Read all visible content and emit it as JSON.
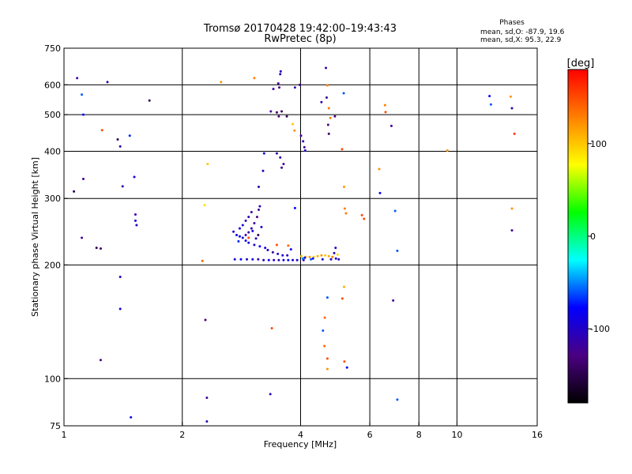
{
  "chart_data": {
    "type": "scatter",
    "title": "Tromsø 20170428 19:42:00–19:43:43",
    "subtitle": "RwPretec (8p)",
    "xlabel": "Frequency [MHz]",
    "ylabel": "Stationary phase Virtual Height [km]",
    "x_scale": "log",
    "y_scale": "log",
    "xlim": [
      1,
      16
    ],
    "ylim": [
      75,
      750
    ],
    "x_ticks": [
      1,
      2,
      4,
      6,
      8,
      10,
      16
    ],
    "y_ticks": [
      75,
      100,
      200,
      300,
      400,
      500,
      600,
      750
    ],
    "x_gridlines": [
      2,
      4,
      6,
      8,
      10
    ],
    "y_gridlines": [
      100,
      200,
      300,
      400,
      500,
      600
    ],
    "stats": {
      "heading": "Phases",
      "line_o": "mean, sd,O: -87.9, 19.6",
      "line_x": "mean, sd,X:  95.3, 22.9"
    },
    "colorbar": {
      "label": "[deg]",
      "range": [
        -180,
        180
      ],
      "ticks": [
        100,
        0,
        -100
      ],
      "colors": [
        "#000000",
        "#4b0082",
        "#0000ff",
        "#00ffff",
        "#00ff00",
        "#ffff00",
        "#ff8000",
        "#ff0000"
      ]
    },
    "points": [
      [
        1.08,
        625,
        -120
      ],
      [
        1.29,
        610,
        -110
      ],
      [
        1.11,
        565,
        -60
      ],
      [
        1.12,
        500,
        -80
      ],
      [
        1.65,
        545,
        -150
      ],
      [
        1.37,
        430,
        -150
      ],
      [
        1.39,
        412,
        -110
      ],
      [
        1.25,
        455,
        150
      ],
      [
        1.47,
        440,
        -70
      ],
      [
        1.12,
        338,
        -120
      ],
      [
        1.06,
        313,
        -150
      ],
      [
        1.41,
        323,
        -110
      ],
      [
        1.51,
        342,
        -90
      ],
      [
        1.52,
        272,
        -110
      ],
      [
        1.52,
        262,
        -90
      ],
      [
        1.53,
        255,
        -100
      ],
      [
        1.11,
        236,
        -120
      ],
      [
        1.21,
        222,
        -150
      ],
      [
        1.24,
        221,
        -140
      ],
      [
        1.39,
        186,
        -100
      ],
      [
        1.39,
        153,
        -90
      ],
      [
        1.24,
        112,
        -130
      ],
      [
        1.48,
        79,
        -90
      ],
      [
        2.51,
        610,
        120
      ],
      [
        3.05,
        625,
        130
      ],
      [
        2.32,
        370,
        100
      ],
      [
        2.28,
        288,
        90
      ],
      [
        2.29,
        143,
        -130
      ],
      [
        2.31,
        89,
        -120
      ],
      [
        2.31,
        77,
        -110
      ],
      [
        3.35,
        91,
        -110
      ],
      [
        3.38,
        136,
        150
      ],
      [
        2.25,
        205,
        140
      ],
      [
        3.51,
        605,
        -120
      ],
      [
        3.53,
        590,
        -130
      ],
      [
        3.55,
        640,
        -110
      ],
      [
        3.56,
        651,
        -100
      ],
      [
        3.41,
        585,
        -110
      ],
      [
        3.36,
        510,
        -120
      ],
      [
        3.48,
        507,
        -140
      ],
      [
        3.52,
        495,
        -130
      ],
      [
        3.58,
        510,
        -140
      ],
      [
        3.69,
        495,
        -150
      ],
      [
        3.82,
        472,
        100
      ],
      [
        3.86,
        454,
        120
      ],
      [
        3.87,
        590,
        -110
      ],
      [
        3.98,
        600,
        -120
      ],
      [
        4.01,
        440,
        -120
      ],
      [
        4.06,
        425,
        -110
      ],
      [
        4.09,
        410,
        -120
      ],
      [
        4.11,
        402,
        -100
      ],
      [
        3.48,
        395,
        -110
      ],
      [
        3.55,
        385,
        -110
      ],
      [
        3.62,
        370,
        -120
      ],
      [
        3.58,
        362,
        -120
      ],
      [
        3.23,
        395,
        -90
      ],
      [
        3.21,
        355,
        -100
      ],
      [
        3.13,
        322,
        -110
      ],
      [
        3.87,
        283,
        -80
      ],
      [
        3.72,
        225,
        140
      ],
      [
        3.48,
        226,
        150
      ],
      [
        4.07,
        206,
        -100
      ],
      [
        3.78,
        220,
        -90
      ],
      [
        4.64,
        665,
        -120
      ],
      [
        4.68,
        598,
        130
      ],
      [
        4.66,
        555,
        -120
      ],
      [
        4.52,
        540,
        -110
      ],
      [
        4.89,
        495,
        -130
      ],
      [
        4.72,
        520,
        130
      ],
      [
        4.76,
        490,
        130
      ],
      [
        4.7,
        470,
        -130
      ],
      [
        4.72,
        445,
        -140
      ],
      [
        5.15,
        570,
        -60
      ],
      [
        5.1,
        405,
        150
      ],
      [
        5.16,
        322,
        120
      ],
      [
        5.18,
        282,
        130
      ],
      [
        5.22,
        274,
        130
      ],
      [
        5.73,
        271,
        150
      ],
      [
        5.8,
        265,
        150
      ],
      [
        4.91,
        222,
        -100
      ],
      [
        4.87,
        215,
        -110
      ],
      [
        5.16,
        175,
        110
      ],
      [
        5.11,
        163,
        150
      ],
      [
        4.68,
        164,
        -60
      ],
      [
        4.61,
        145,
        140
      ],
      [
        4.56,
        134,
        -60
      ],
      [
        4.6,
        122,
        140
      ],
      [
        4.68,
        113,
        150
      ],
      [
        4.68,
        106,
        120
      ],
      [
        5.17,
        111,
        150
      ],
      [
        5.25,
        107,
        -80
      ],
      [
        6.34,
        359,
        120
      ],
      [
        6.37,
        310,
        -80
      ],
      [
        6.56,
        530,
        130
      ],
      [
        6.58,
        508,
        150
      ],
      [
        6.81,
        467,
        -120
      ],
      [
        6.96,
        278,
        -60
      ],
      [
        6.88,
        161,
        -120
      ],
      [
        7.05,
        88,
        -60
      ],
      [
        7.05,
        218,
        -60
      ],
      [
        9.45,
        402,
        120
      ],
      [
        12.1,
        560,
        -80
      ],
      [
        12.2,
        532,
        -60
      ],
      [
        13.7,
        558,
        120
      ],
      [
        13.8,
        520,
        -110
      ],
      [
        14.0,
        445,
        160
      ],
      [
        13.8,
        282,
        120
      ],
      [
        13.8,
        247,
        -120
      ],
      [
        2.7,
        245,
        -100
      ],
      [
        2.75,
        240,
        -90
      ],
      [
        2.8,
        238,
        -80
      ],
      [
        2.85,
        236,
        -100
      ],
      [
        2.9,
        240,
        -110
      ],
      [
        2.95,
        244,
        -120
      ],
      [
        3.0,
        250,
        -110
      ],
      [
        3.05,
        258,
        -120
      ],
      [
        3.1,
        268,
        -130
      ],
      [
        3.13,
        280,
        -120
      ],
      [
        3.15,
        286,
        -110
      ],
      [
        2.8,
        250,
        -90
      ],
      [
        2.85,
        255,
        -100
      ],
      [
        2.9,
        262,
        -110
      ],
      [
        2.95,
        268,
        -110
      ],
      [
        3.0,
        276,
        -120
      ],
      [
        2.9,
        232,
        -80
      ],
      [
        2.95,
        229,
        -90
      ],
      [
        3.05,
        226,
        -100
      ],
      [
        3.15,
        224,
        -80
      ],
      [
        3.25,
        222,
        -90
      ],
      [
        3.3,
        219,
        -100
      ],
      [
        3.4,
        216,
        -110
      ],
      [
        3.5,
        214,
        -100
      ],
      [
        3.6,
        212,
        -90
      ],
      [
        3.7,
        212,
        -110
      ],
      [
        3.02,
        246,
        -90
      ],
      [
        2.78,
        231,
        -70
      ],
      [
        3.08,
        235,
        -100
      ],
      [
        3.18,
        252,
        -90
      ],
      [
        3.12,
        240,
        -150
      ],
      [
        2.95,
        236,
        150
      ],
      [
        2.72,
        207,
        -90
      ],
      [
        2.82,
        207,
        -80
      ],
      [
        2.92,
        207,
        -100
      ],
      [
        3.02,
        207,
        -90
      ],
      [
        3.12,
        207,
        -110
      ],
      [
        3.22,
        206,
        -100
      ],
      [
        3.32,
        206,
        -90
      ],
      [
        3.42,
        206,
        -100
      ],
      [
        3.52,
        206,
        -110
      ],
      [
        3.62,
        206,
        -90
      ],
      [
        3.72,
        206,
        -80
      ],
      [
        3.82,
        206,
        -100
      ],
      [
        3.92,
        206,
        -100
      ],
      [
        4.02,
        211,
        100
      ],
      [
        4.12,
        210,
        110
      ],
      [
        4.22,
        210,
        120
      ],
      [
        4.32,
        210,
        100
      ],
      [
        4.42,
        211,
        110
      ],
      [
        4.52,
        212,
        120
      ],
      [
        4.62,
        212,
        100
      ],
      [
        4.72,
        211,
        110
      ],
      [
        4.82,
        210,
        130
      ],
      [
        4.97,
        213,
        90
      ],
      [
        4.1,
        209,
        -90
      ],
      [
        4.3,
        208,
        -80
      ],
      [
        4.55,
        207,
        -100
      ],
      [
        4.78,
        207,
        -100
      ],
      [
        4.92,
        208,
        -90
      ],
      [
        5.0,
        207,
        -110
      ],
      [
        4.25,
        207,
        -60
      ],
      [
        4.05,
        208,
        -50
      ]
    ]
  }
}
